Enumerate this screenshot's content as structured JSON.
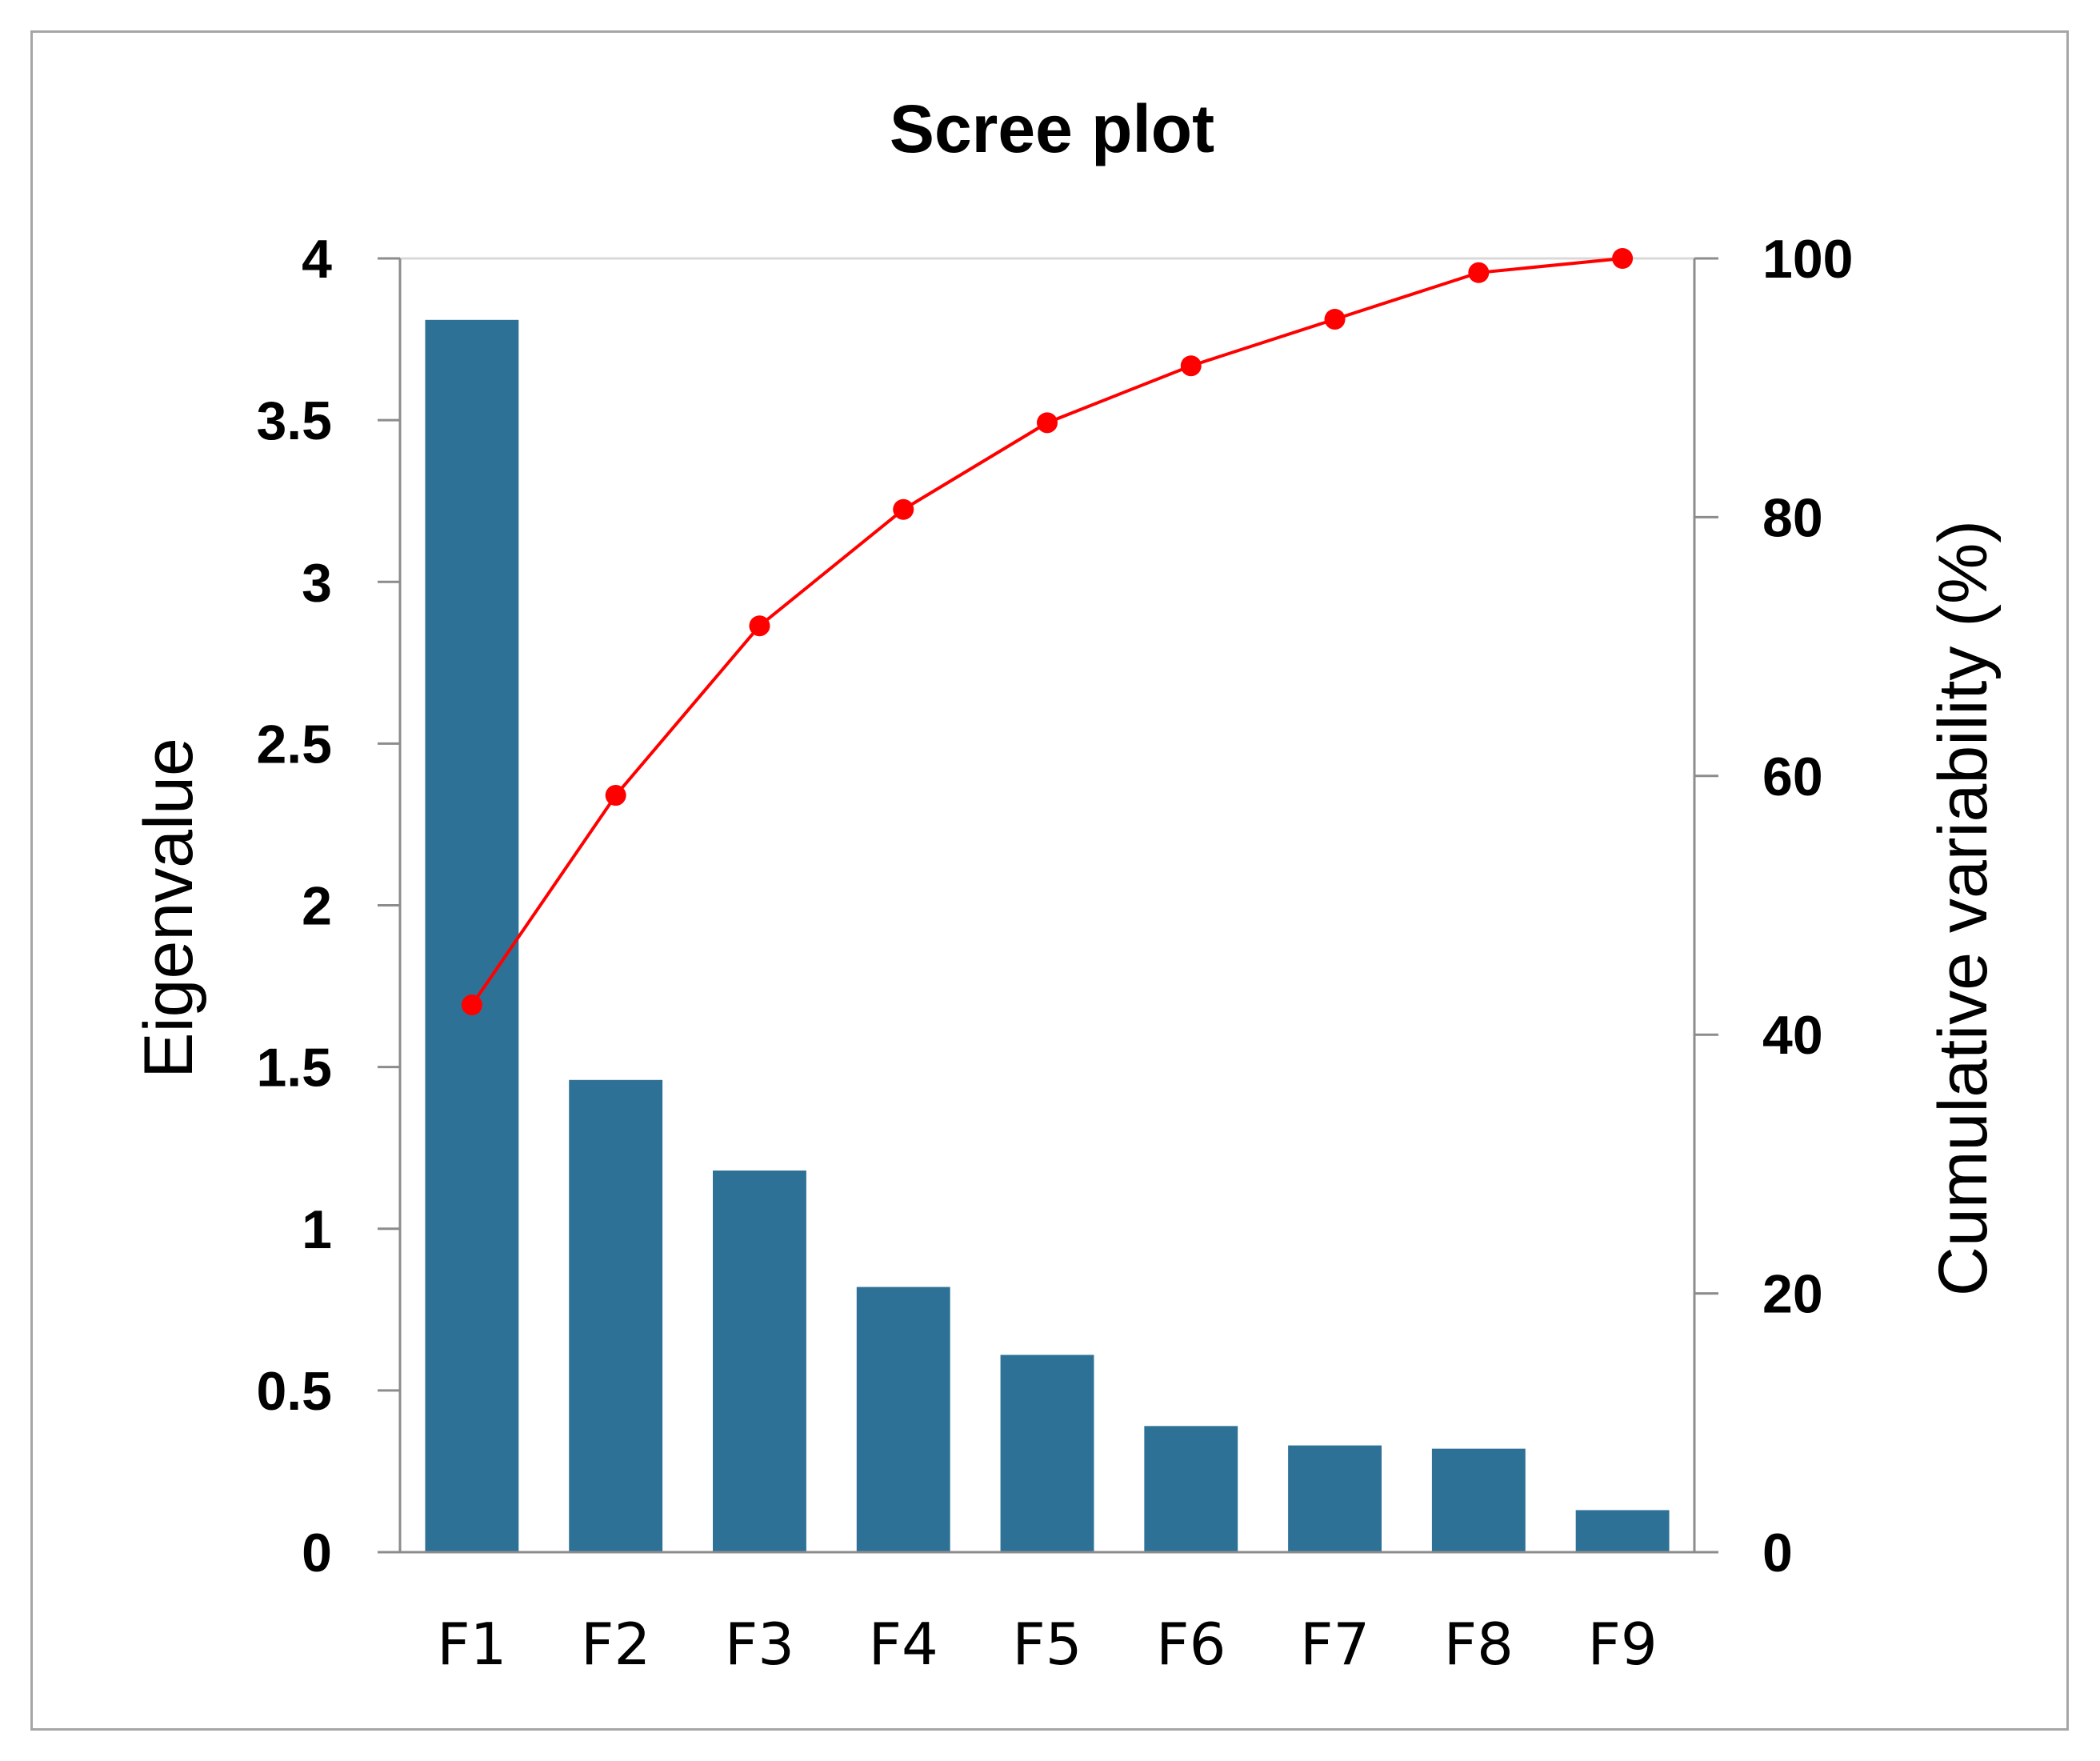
{
  "chart_data": {
    "type": "bar",
    "title": "Scree plot",
    "categories": [
      "F1",
      "F2",
      "F3",
      "F4",
      "F5",
      "F6",
      "F7",
      "F8",
      "F9"
    ],
    "series": [
      {
        "type": "bar",
        "axis": "left",
        "values": [
          3.81,
          1.46,
          1.18,
          0.82,
          0.61,
          0.39,
          0.33,
          0.32,
          0.13
        ]
      },
      {
        "type": "line",
        "axis": "right",
        "values": [
          42.3,
          58.5,
          71.6,
          80.6,
          87.3,
          91.7,
          95.3,
          98.9,
          100
        ]
      }
    ],
    "ylabel": "Eigenvalue",
    "y2label": "Cumulative variability (%)",
    "ylim": [
      0,
      4
    ],
    "y2lim": [
      0,
      100
    ],
    "yticks": [
      "0",
      "0.5",
      "1",
      "1.5",
      "2",
      "2.5",
      "3",
      "3.5",
      "4"
    ],
    "y2ticks": [
      "0",
      "20",
      "40",
      "60",
      "80",
      "100"
    ],
    "grid": false,
    "legend": "none",
    "colors": {
      "bar": "#2e7196",
      "line": "#ff0000",
      "axis": "#8c8c8c"
    }
  }
}
